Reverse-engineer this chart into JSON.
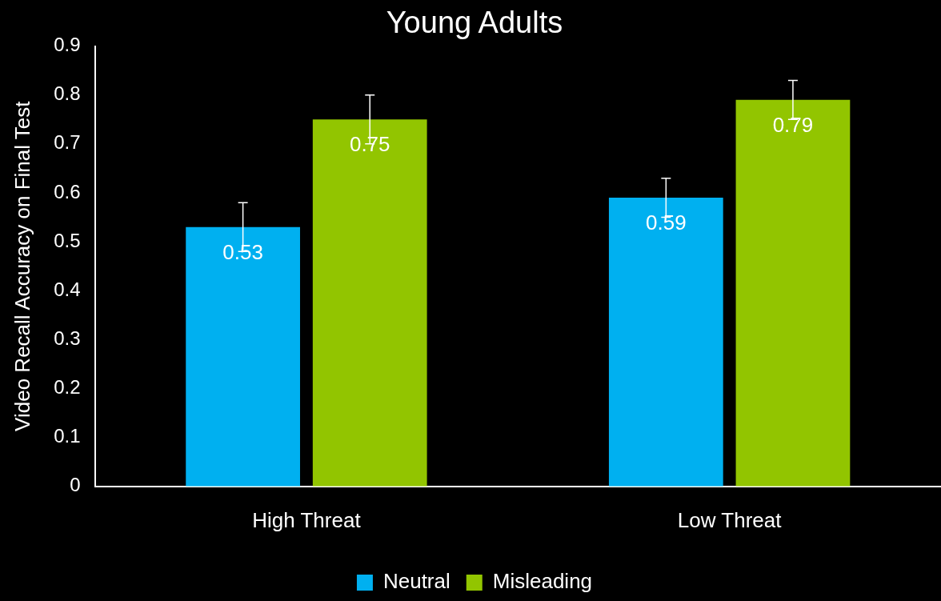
{
  "chart_data": {
    "type": "bar",
    "title": "Young Adults",
    "ylabel": "Video Recall Accuracy on Final Test",
    "categories": [
      "High Threat",
      "Low Threat"
    ],
    "series": [
      {
        "name": "Neutral",
        "color": "#00b0f0",
        "values": [
          0.53,
          0.59
        ],
        "errors": [
          0.05,
          0.04
        ]
      },
      {
        "name": "Misleading",
        "color": "#92c500",
        "values": [
          0.75,
          0.79
        ],
        "errors": [
          0.05,
          0.04
        ]
      }
    ],
    "ylim": [
      0,
      0.9
    ],
    "yticks": [
      0,
      0.1,
      0.2,
      0.3,
      0.4,
      0.5,
      0.6,
      0.7,
      0.8,
      0.9
    ],
    "grid": false,
    "legend": "bottom",
    "data_labels": true
  }
}
